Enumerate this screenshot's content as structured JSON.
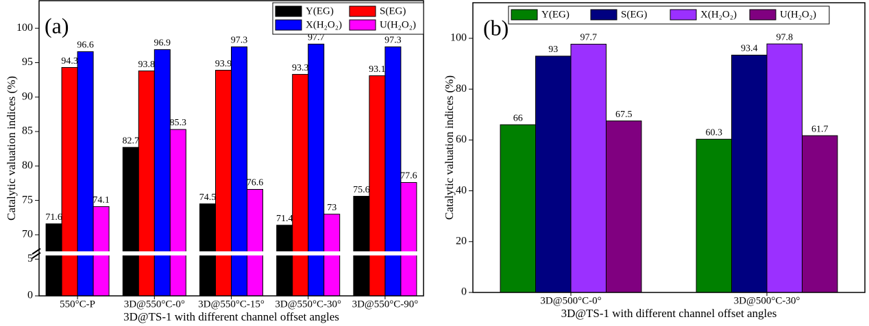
{
  "chart_data": [
    {
      "type": "bar",
      "label": "(a)",
      "y_label": "Catalytic valuation indices (%)",
      "x_label": "3D@TS-1  with different channel offset angles",
      "categories": [
        "550°C-P",
        "3D@550°C-0°",
        "3D@550°C-15°",
        "3D@550°C-30°",
        "3D@550°C-90°"
      ],
      "series": [
        {
          "name": "Y(EG)",
          "color": "#000000",
          "values": [
            71.6,
            82.7,
            74.5,
            71.4,
            75.6
          ]
        },
        {
          "name": "S(EG)",
          "color": "#ff0000",
          "values": [
            94.3,
            93.8,
            93.9,
            93.3,
            93.1
          ]
        },
        {
          "name": "X(H₂O₂)",
          "color": "#0000ff",
          "values": [
            96.6,
            96.9,
            97.3,
            97.7,
            97.3
          ]
        },
        {
          "name": "U(H₂O₂)",
          "color": "#ff00ff",
          "values": [
            74.1,
            85.3,
            76.6,
            73,
            77.6
          ]
        }
      ],
      "ylim": [
        0,
        104
      ],
      "ybreak": [
        5.5,
        67.6
      ],
      "yticks": [
        0,
        5,
        70,
        75,
        80,
        85,
        90,
        95,
        100
      ],
      "legend": "upper right"
    },
    {
      "type": "bar",
      "label": "(b)",
      "y_label": "Catalytic valuation indices (%)",
      "x_label": "3D@TS-1  with different channel offset angles",
      "categories": [
        "3D@500°C-0°",
        "3D@500°C-30°"
      ],
      "series": [
        {
          "name": "Y(EG)",
          "color": "#008000",
          "values": [
            66,
            60.3
          ]
        },
        {
          "name": "S(EG)",
          "color": "#000080",
          "values": [
            93,
            93.4
          ]
        },
        {
          "name": "X(H₂O₂)",
          "color": "#9b30ff",
          "values": [
            97.7,
            97.8
          ]
        },
        {
          "name": "U(H₂O₂)",
          "color": "#800080",
          "values": [
            67.5,
            61.7
          ]
        }
      ],
      "ylim": [
        0,
        114
      ],
      "yticks": [
        0,
        20,
        40,
        60,
        80,
        100
      ],
      "legend": "upper center"
    }
  ]
}
